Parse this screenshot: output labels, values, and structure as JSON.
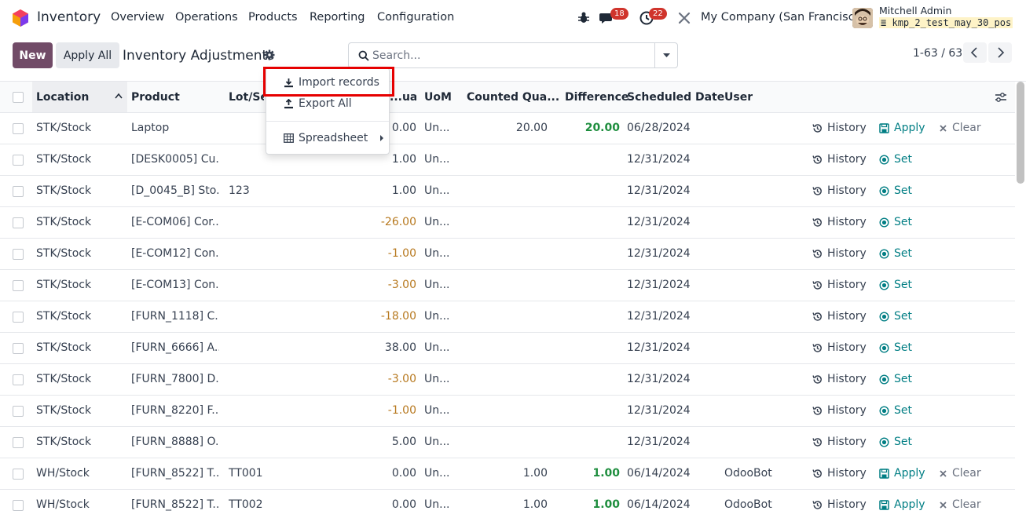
{
  "navbar": {
    "app_name": "Inventory",
    "menu": [
      "Overview",
      "Operations",
      "Products",
      "Reporting",
      "Configuration"
    ],
    "messages_count": "18",
    "activities_count": "22",
    "company": "My Company (San Francisco)",
    "user_name": "Mitchell Admin",
    "db_name": "kmp_2_test_may_30_pos"
  },
  "control": {
    "new_label": "New",
    "apply_all_label": "Apply All",
    "title": "Inventory Adjustments",
    "search_placeholder": "Search...",
    "pager": "1-63 / 63"
  },
  "dropdown": {
    "import": "Import records",
    "export": "Export All",
    "spreadsheet": "Spreadsheet"
  },
  "table": {
    "headers": {
      "location": "Location",
      "product": "Product",
      "lot": "Lot/Ser",
      "onhand": "...ua...",
      "uom": "UoM",
      "counted": "Counted Qua...",
      "difference": "Difference",
      "date": "Scheduled Date",
      "user": "User"
    },
    "rows": [
      {
        "location": "STK/Stock",
        "product": "Laptop",
        "lot": "",
        "qty": "0.00",
        "qtype": "normal",
        "uom": "Un...",
        "counted": "20.00",
        "diff": "20.00",
        "date": "06/28/2024",
        "user": "",
        "mode": "apply"
      },
      {
        "location": "STK/Stock",
        "product": "[DESK0005] Cu...",
        "lot": "",
        "qty": "1.00",
        "qtype": "normal",
        "uom": "Un...",
        "counted": "",
        "diff": "",
        "date": "12/31/2024",
        "user": "",
        "mode": "set"
      },
      {
        "location": "STK/Stock",
        "product": "[D_0045_B] Sto...",
        "lot": "123",
        "qty": "1.00",
        "qtype": "normal",
        "uom": "Un...",
        "counted": "",
        "diff": "",
        "date": "12/31/2024",
        "user": "",
        "mode": "set"
      },
      {
        "location": "STK/Stock",
        "product": "[E-COM06] Cor...",
        "lot": "",
        "qty": "-26.00",
        "qtype": "neg",
        "uom": "Un...",
        "counted": "",
        "diff": "",
        "date": "12/31/2024",
        "user": "",
        "mode": "set"
      },
      {
        "location": "STK/Stock",
        "product": "[E-COM12] Con...",
        "lot": "",
        "qty": "-1.00",
        "qtype": "neg",
        "uom": "Un...",
        "counted": "",
        "diff": "",
        "date": "12/31/2024",
        "user": "",
        "mode": "set"
      },
      {
        "location": "STK/Stock",
        "product": "[E-COM13] Con...",
        "lot": "",
        "qty": "-3.00",
        "qtype": "neg",
        "uom": "Un...",
        "counted": "",
        "diff": "",
        "date": "12/31/2024",
        "user": "",
        "mode": "set"
      },
      {
        "location": "STK/Stock",
        "product": "[FURN_1118] C...",
        "lot": "",
        "qty": "-18.00",
        "qtype": "neg",
        "uom": "Un...",
        "counted": "",
        "diff": "",
        "date": "12/31/2024",
        "user": "",
        "mode": "set"
      },
      {
        "location": "STK/Stock",
        "product": "[FURN_6666] A...",
        "lot": "",
        "qty": "38.00",
        "qtype": "normal",
        "uom": "Un...",
        "counted": "",
        "diff": "",
        "date": "12/31/2024",
        "user": "",
        "mode": "set"
      },
      {
        "location": "STK/Stock",
        "product": "[FURN_7800] D...",
        "lot": "",
        "qty": "-3.00",
        "qtype": "neg",
        "uom": "Un...",
        "counted": "",
        "diff": "",
        "date": "12/31/2024",
        "user": "",
        "mode": "set"
      },
      {
        "location": "STK/Stock",
        "product": "[FURN_8220] F...",
        "lot": "",
        "qty": "-1.00",
        "qtype": "neg",
        "uom": "Un...",
        "counted": "",
        "diff": "",
        "date": "12/31/2024",
        "user": "",
        "mode": "set"
      },
      {
        "location": "STK/Stock",
        "product": "[FURN_8888] O...",
        "lot": "",
        "qty": "5.00",
        "qtype": "normal",
        "uom": "Un...",
        "counted": "",
        "diff": "",
        "date": "12/31/2024",
        "user": "",
        "mode": "set"
      },
      {
        "location": "WH/Stock",
        "product": "[FURN_8522] T...",
        "lot": "TT001",
        "qty": "0.00",
        "qtype": "normal",
        "uom": "Un...",
        "counted": "1.00",
        "diff": "1.00",
        "date": "06/14/2024",
        "user": "OdooBot",
        "mode": "apply"
      },
      {
        "location": "WH/Stock",
        "product": "[FURN_8522] T...",
        "lot": "TT002",
        "qty": "0.00",
        "qtype": "normal",
        "uom": "Un...",
        "counted": "1.00",
        "diff": "1.00",
        "date": "06/14/2024",
        "user": "OdooBot",
        "mode": "apply"
      }
    ],
    "actions": {
      "history": "History",
      "apply": "Apply",
      "clear": "Clear",
      "set": "Set"
    }
  },
  "colors": {
    "brand": "#714b67",
    "teal": "#017e84",
    "highlight": "#e60000"
  }
}
